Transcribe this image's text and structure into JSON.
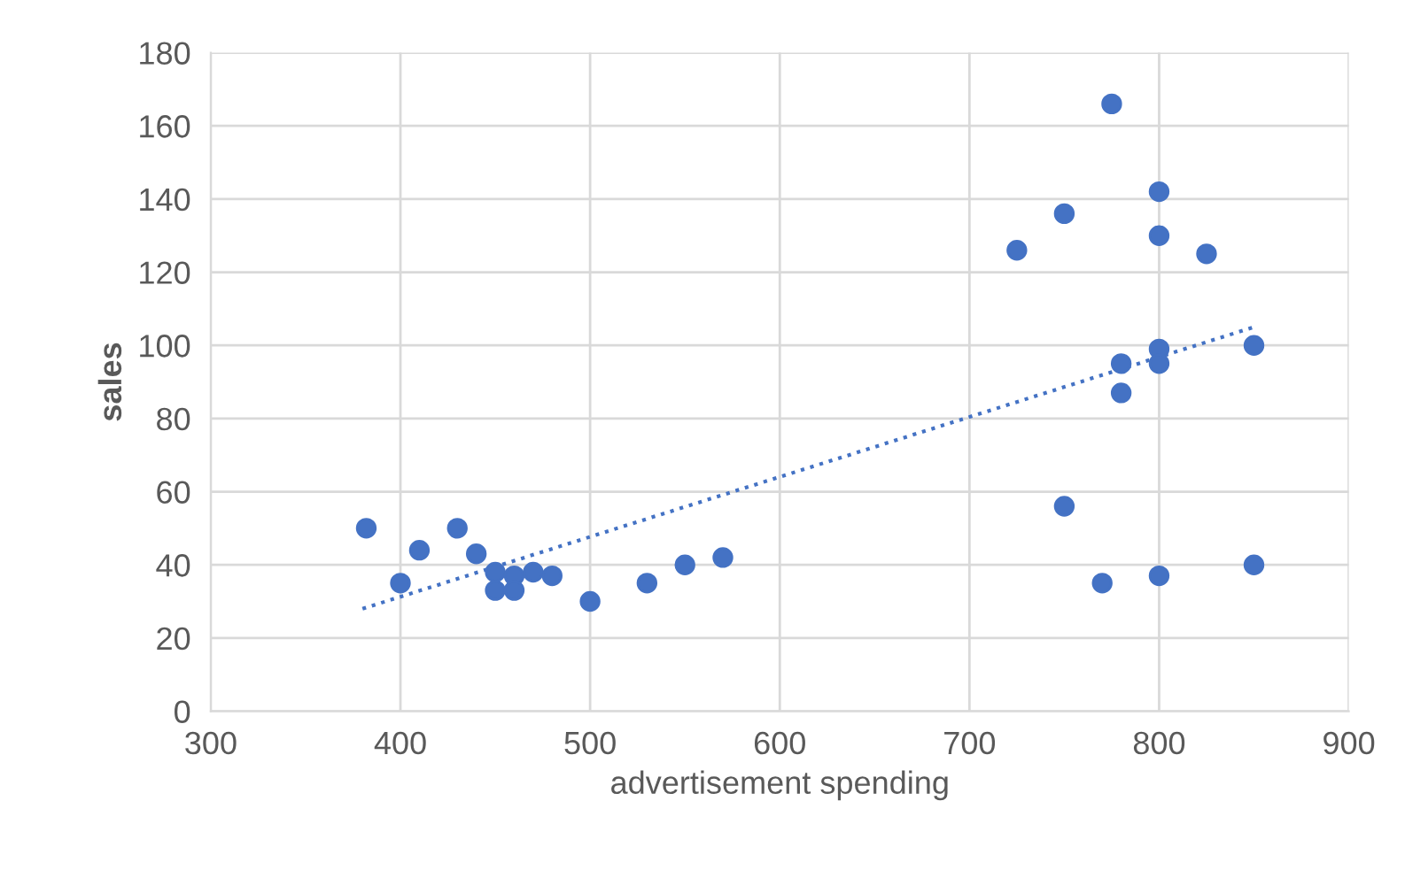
{
  "chart_data": {
    "type": "scatter",
    "xlabel": "advertisement spending",
    "ylabel": "sales",
    "xlim": [
      300,
      900
    ],
    "xticks": [
      300,
      400,
      500,
      600,
      700,
      800,
      900
    ],
    "ylim": [
      0,
      180
    ],
    "yticks": [
      0,
      20,
      40,
      60,
      80,
      100,
      120,
      140,
      160,
      180
    ],
    "grid": true,
    "marker": "circle",
    "series": [
      {
        "color": "#4472c4",
        "x": [
          382,
          400,
          410,
          430,
          440,
          450,
          450,
          460,
          460,
          470,
          480,
          500,
          530,
          550,
          570,
          725,
          750,
          750,
          770,
          775,
          780,
          780,
          800,
          800,
          800,
          800,
          800,
          825,
          850,
          850
        ],
        "values": [
          50,
          35,
          44,
          50,
          43,
          38,
          33,
          37,
          33,
          38,
          37,
          30,
          35,
          40,
          42,
          126,
          136,
          56,
          35,
          166,
          95,
          87,
          142,
          130,
          99,
          95,
          37,
          125,
          100,
          40
        ]
      },
      {
        "type": "line",
        "color": "#4472c4",
        "line_style": "dotted",
        "marker": "none",
        "x": [
          380,
          850
        ],
        "values": [
          28,
          105
        ]
      }
    ]
  }
}
